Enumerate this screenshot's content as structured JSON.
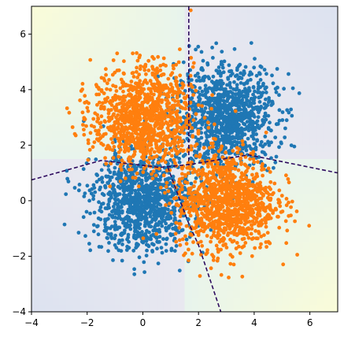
{
  "chart_data": {
    "type": "scatter",
    "title": "",
    "xlabel": "",
    "ylabel": "",
    "xlim": [
      -4,
      7
    ],
    "ylim": [
      -4,
      7
    ],
    "x_ticks": [
      -4,
      -2,
      0,
      2,
      4,
      6
    ],
    "y_ticks": [
      -4,
      -2,
      0,
      2,
      4,
      6
    ],
    "grid": false,
    "background": "decision-surface contour (light pastel)",
    "series": [
      {
        "color": "#1f77b4",
        "clusters": [
          {
            "center": [
              3.0,
              3.0
            ],
            "std": 0.9,
            "n": 1100
          },
          {
            "center": [
              0.0,
              0.0
            ],
            "std": 0.9,
            "n": 1100
          }
        ]
      },
      {
        "color": "#ff7f0e",
        "clusters": [
          {
            "center": [
              0.0,
              3.0
            ],
            "std": 0.9,
            "n": 1100
          },
          {
            "center": [
              3.0,
              0.0
            ],
            "std": 0.9,
            "n": 1100
          }
        ]
      }
    ],
    "boundaries": [
      {
        "style": "dashed",
        "color": "#2d0a5e",
        "points": [
          [
            1.65,
            7.0
          ],
          [
            1.65,
            1.3
          ]
        ]
      },
      {
        "style": "dashed",
        "color": "#2d0a5e",
        "points": [
          [
            -4.0,
            0.75
          ],
          [
            -1.5,
            1.45
          ],
          [
            0.6,
            1.2
          ],
          [
            1.65,
            1.3
          ],
          [
            3.8,
            1.65
          ],
          [
            7.0,
            1.0
          ]
        ]
      },
      {
        "style": "dashed",
        "color": "#2d0a5e",
        "points": [
          [
            0.9,
            1.2
          ],
          [
            1.6,
            -0.7
          ],
          [
            2.0,
            -1.6
          ],
          [
            2.8,
            -4.0
          ]
        ]
      }
    ]
  }
}
